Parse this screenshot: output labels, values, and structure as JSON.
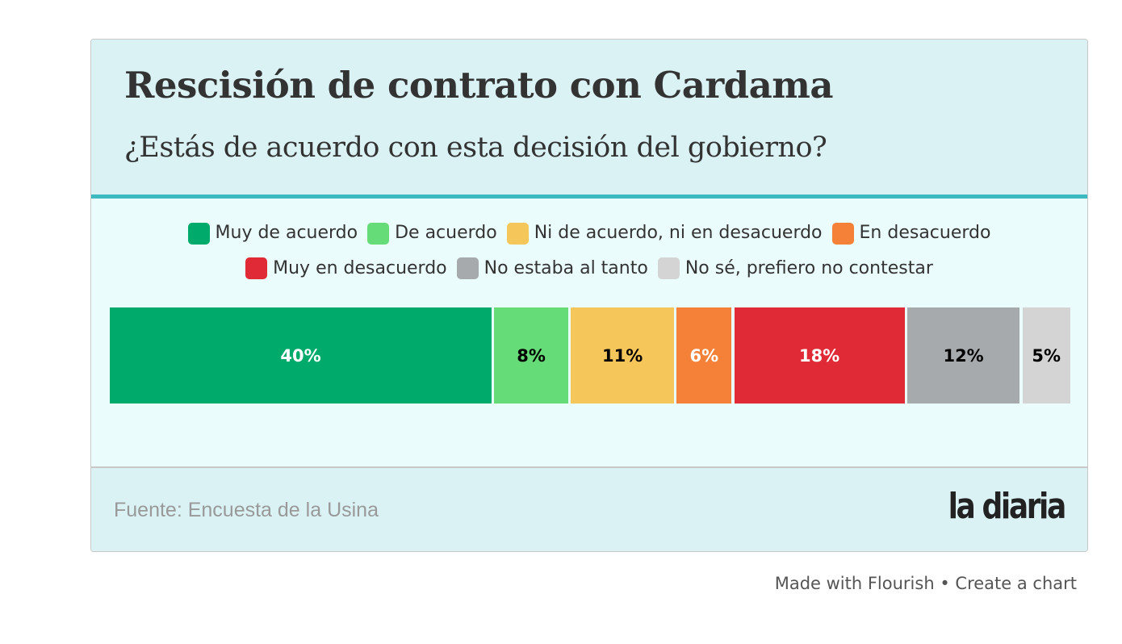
{
  "header": {
    "title": "Rescisión de contrato con Cardama",
    "subtitle": "¿Estás de acuerdo con esta decisión del gobierno?"
  },
  "footer": {
    "source": "Fuente: Encuesta de la Usina",
    "logo": "la diaria"
  },
  "credit": {
    "made_with": "Made with Flourish",
    "separator": "•",
    "create": "Create a chart"
  },
  "colors": {
    "header_bg": "#dbf2f5",
    "body_bg": "#ebfcfd",
    "accent_line": "#3db9c0"
  },
  "chart_data": {
    "type": "bar",
    "orientation": "horizontal-stacked",
    "title": "Rescisión de contrato con Cardama",
    "subtitle": "¿Estás de acuerdo con esta decisión del gobierno?",
    "xlabel": "",
    "ylabel": "",
    "xlim": [
      0,
      100
    ],
    "grid": false,
    "legend_position": "top-center",
    "series": [
      {
        "name": "Muy de acuerdo",
        "value": 40,
        "label": "40%",
        "color": "#00aa6a",
        "label_color": "#ffffff"
      },
      {
        "name": "De acuerdo",
        "value": 8,
        "label": "8%",
        "color": "#66dc78",
        "label_color": "#000000"
      },
      {
        "name": "Ni de acuerdo, ni en desacuerdo",
        "value": 11,
        "label": "11%",
        "color": "#f5c75a",
        "label_color": "#000000"
      },
      {
        "name": "En desacuerdo",
        "value": 6,
        "label": "6%",
        "color": "#f58138",
        "label_color": "#ffffff"
      },
      {
        "name": "Muy en desacuerdo",
        "value": 18,
        "label": "18%",
        "color": "#e02a35",
        "label_color": "#ffffff"
      },
      {
        "name": "No estaba al tanto",
        "value": 12,
        "label": "12%",
        "color": "#a7aaad",
        "label_color": "#000000"
      },
      {
        "name": "No sé, prefiero no contestar",
        "value": 5,
        "label": "5%",
        "color": "#d4d4d4",
        "label_color": "#000000"
      }
    ],
    "legend_rows": [
      [
        0,
        1,
        2,
        3
      ],
      [
        4,
        5,
        6
      ]
    ]
  }
}
